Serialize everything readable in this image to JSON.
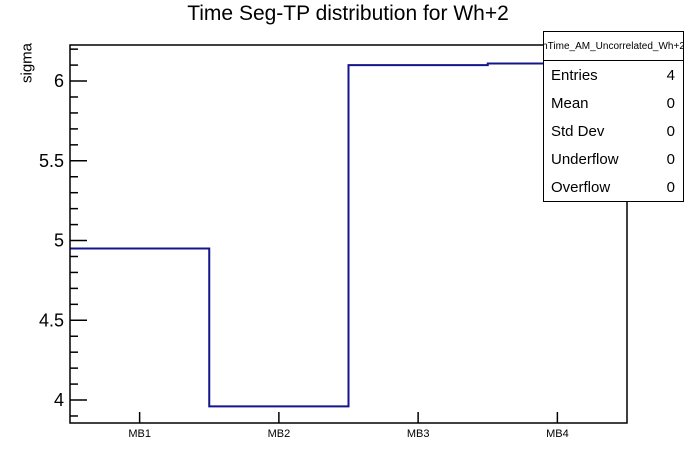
{
  "title": "Time Seg-TP distribution for Wh+2",
  "chart_data": {
    "type": "step-histogram",
    "title": "Time Seg-TP distribution for Wh+2",
    "xlabel": "",
    "ylabel": "sigma",
    "categories": [
      "MB1",
      "MB2",
      "MB3",
      "MB4"
    ],
    "values": [
      4.95,
      3.96,
      6.1,
      6.11
    ],
    "ylim": [
      3.856,
      6.226
    ],
    "yticks_major": [
      4,
      4.5,
      5,
      5.5,
      6
    ],
    "ytick_labels": [
      "4",
      "4.5",
      "5",
      "5.5",
      "6"
    ],
    "yminor_step": 0.1,
    "grid": false,
    "legend_position": "none",
    "line_color": "#14148c",
    "frame_color": "#000000",
    "background_color": "#ffffff"
  },
  "stats_box": {
    "header": "hTime_AM_Uncorrelated_Wh+2",
    "rows": [
      {
        "label": "Entries",
        "value": "4"
      },
      {
        "label": "Mean",
        "value": "0"
      },
      {
        "label": "Std Dev",
        "value": "0"
      },
      {
        "label": "Underflow",
        "value": "0"
      },
      {
        "label": "Overflow",
        "value": "0"
      }
    ]
  }
}
